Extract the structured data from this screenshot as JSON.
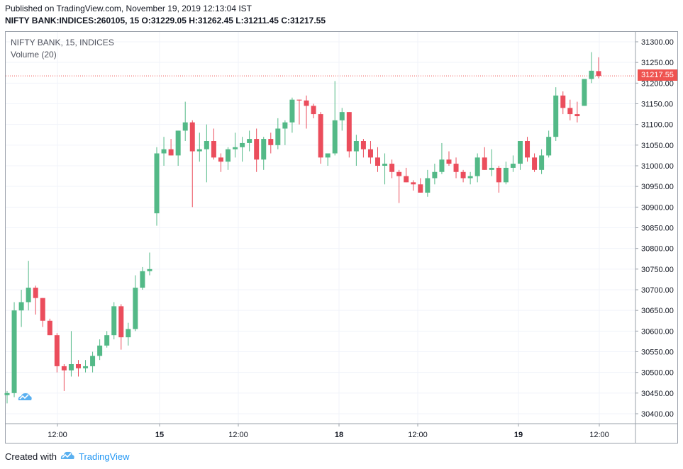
{
  "header": {
    "published": "Published on TradingView.com, November 19, 2019 12:13:04 IST",
    "symbol_line": "NIFTY BANK:INDICES:260105, 15 O:31229.05 H:31262.45 L:31211.45 C:31217.55"
  },
  "legend": {
    "series_title": "NIFTY BANK, 15, INDICES",
    "volume_label": "Volume (20)"
  },
  "footer": {
    "created_with": "Created with",
    "brand": "TradingView"
  },
  "colors": {
    "up": "#53b987",
    "down": "#eb4d5c",
    "grid": "#f0f3fa",
    "last_price_line": "#ef5350"
  },
  "chart_data": {
    "type": "candlestick",
    "timeframe": "15",
    "x_tick_labels": [
      "12:00",
      "15",
      "12:00",
      "18",
      "12:00",
      "19",
      "12:00"
    ],
    "y_ticks": [
      30400,
      30450,
      30500,
      30550,
      30600,
      30650,
      30700,
      30750,
      30800,
      30850,
      30900,
      30950,
      31000,
      31050,
      31100,
      31150,
      31200,
      31250,
      31300
    ],
    "y_tick_labels": [
      "30400.00",
      "30450.00",
      "30500.00",
      "30550.00",
      "30600.00",
      "30650.00",
      "30700.00",
      "30750.00",
      "30800.00",
      "30850.00",
      "30900.00",
      "30950.00",
      "31000.00",
      "31050.00",
      "31100.00",
      "31150.00",
      "31200.00",
      "31250.00",
      "31300.00"
    ],
    "ylim": [
      30375,
      31325
    ],
    "last_price": 31217.55,
    "last_price_label": "31217.55",
    "candles": [
      {
        "o": 30445,
        "h": 30455,
        "l": 30425,
        "c": 30450
      },
      {
        "o": 30450,
        "h": 30670,
        "l": 30440,
        "c": 30650
      },
      {
        "o": 30650,
        "h": 30700,
        "l": 30610,
        "c": 30670
      },
      {
        "o": 30670,
        "h": 30770,
        "l": 30650,
        "c": 30705
      },
      {
        "o": 30705,
        "h": 30710,
        "l": 30640,
        "c": 30680
      },
      {
        "o": 30680,
        "h": 30680,
        "l": 30610,
        "c": 30625
      },
      {
        "o": 30625,
        "h": 30630,
        "l": 30590,
        "c": 30590
      },
      {
        "o": 30590,
        "h": 30595,
        "l": 30500,
        "c": 30515
      },
      {
        "o": 30515,
        "h": 30520,
        "l": 30455,
        "c": 30505
      },
      {
        "o": 30505,
        "h": 30600,
        "l": 30490,
        "c": 30520
      },
      {
        "o": 30520,
        "h": 30530,
        "l": 30490,
        "c": 30510
      },
      {
        "o": 30510,
        "h": 30530,
        "l": 30500,
        "c": 30515
      },
      {
        "o": 30515,
        "h": 30550,
        "l": 30500,
        "c": 30540
      },
      {
        "o": 30540,
        "h": 30580,
        "l": 30530,
        "c": 30565
      },
      {
        "o": 30565,
        "h": 30600,
        "l": 30560,
        "c": 30590
      },
      {
        "o": 30590,
        "h": 30670,
        "l": 30580,
        "c": 30660
      },
      {
        "o": 30660,
        "h": 30665,
        "l": 30555,
        "c": 30585
      },
      {
        "o": 30585,
        "h": 30620,
        "l": 30565,
        "c": 30605
      },
      {
        "o": 30605,
        "h": 30735,
        "l": 30600,
        "c": 30705
      },
      {
        "o": 30705,
        "h": 30755,
        "l": 30700,
        "c": 30745
      },
      {
        "o": 30745,
        "h": 30790,
        "l": 30735,
        "c": 30750
      },
      {
        "o": 30885,
        "h": 31045,
        "l": 30855,
        "c": 31030
      },
      {
        "o": 31030,
        "h": 31070,
        "l": 31000,
        "c": 31040
      },
      {
        "o": 31040,
        "h": 31065,
        "l": 31030,
        "c": 31025
      },
      {
        "o": 31025,
        "h": 31085,
        "l": 31000,
        "c": 31085
      },
      {
        "o": 31085,
        "h": 31155,
        "l": 31060,
        "c": 31105
      },
      {
        "o": 31105,
        "h": 31110,
        "l": 30900,
        "c": 31035
      },
      {
        "o": 31035,
        "h": 31080,
        "l": 31010,
        "c": 31040
      },
      {
        "o": 31040,
        "h": 31100,
        "l": 30960,
        "c": 31060
      },
      {
        "o": 31060,
        "h": 31090,
        "l": 31015,
        "c": 31020
      },
      {
        "o": 31020,
        "h": 31030,
        "l": 30985,
        "c": 31010
      },
      {
        "o": 31010,
        "h": 31045,
        "l": 30990,
        "c": 31040
      },
      {
        "o": 31040,
        "h": 31080,
        "l": 31020,
        "c": 31045
      },
      {
        "o": 31045,
        "h": 31070,
        "l": 31010,
        "c": 31055
      },
      {
        "o": 31055,
        "h": 31085,
        "l": 31035,
        "c": 31065
      },
      {
        "o": 31065,
        "h": 31090,
        "l": 30985,
        "c": 31015
      },
      {
        "o": 31015,
        "h": 31070,
        "l": 30990,
        "c": 31065
      },
      {
        "o": 31065,
        "h": 31080,
        "l": 31030,
        "c": 31050
      },
      {
        "o": 31050,
        "h": 31115,
        "l": 31040,
        "c": 31090
      },
      {
        "o": 31090,
        "h": 31110,
        "l": 31050,
        "c": 31105
      },
      {
        "o": 31105,
        "h": 31165,
        "l": 31080,
        "c": 31160
      },
      {
        "o": 31160,
        "h": 31155,
        "l": 31100,
        "c": 31158
      },
      {
        "o": 31158,
        "h": 31170,
        "l": 31090,
        "c": 31145
      },
      {
        "o": 31145,
        "h": 31150,
        "l": 31115,
        "c": 31125
      },
      {
        "o": 31125,
        "h": 31130,
        "l": 31005,
        "c": 31020
      },
      {
        "o": 31020,
        "h": 31030,
        "l": 31000,
        "c": 31030
      },
      {
        "o": 31030,
        "h": 31205,
        "l": 31025,
        "c": 31110
      },
      {
        "o": 31110,
        "h": 31140,
        "l": 31085,
        "c": 31130
      },
      {
        "o": 31130,
        "h": 31130,
        "l": 31020,
        "c": 31035
      },
      {
        "o": 31035,
        "h": 31075,
        "l": 31000,
        "c": 31060
      },
      {
        "o": 31060,
        "h": 31065,
        "l": 31020,
        "c": 31040
      },
      {
        "o": 31040,
        "h": 31060,
        "l": 31005,
        "c": 31020
      },
      {
        "o": 31020,
        "h": 31045,
        "l": 30985,
        "c": 31000
      },
      {
        "o": 31000,
        "h": 31030,
        "l": 30955,
        "c": 31005
      },
      {
        "o": 31005,
        "h": 31015,
        "l": 30970,
        "c": 30985
      },
      {
        "o": 30985,
        "h": 30990,
        "l": 30910,
        "c": 30975
      },
      {
        "o": 30975,
        "h": 30995,
        "l": 30960,
        "c": 30960
      },
      {
        "o": 30960,
        "h": 30965,
        "l": 30940,
        "c": 30955
      },
      {
        "o": 30955,
        "h": 30970,
        "l": 30935,
        "c": 30935
      },
      {
        "o": 30935,
        "h": 30990,
        "l": 30925,
        "c": 30970
      },
      {
        "o": 30970,
        "h": 31005,
        "l": 30955,
        "c": 30985
      },
      {
        "o": 30985,
        "h": 31055,
        "l": 30980,
        "c": 31015
      },
      {
        "o": 31015,
        "h": 31035,
        "l": 31000,
        "c": 31005
      },
      {
        "o": 31005,
        "h": 31020,
        "l": 30970,
        "c": 30985
      },
      {
        "o": 30985,
        "h": 30990,
        "l": 30960,
        "c": 30970
      },
      {
        "o": 30970,
        "h": 30985,
        "l": 30955,
        "c": 30975
      },
      {
        "o": 30975,
        "h": 31030,
        "l": 30960,
        "c": 31020
      },
      {
        "o": 31020,
        "h": 31045,
        "l": 30990,
        "c": 30990
      },
      {
        "o": 30990,
        "h": 31040,
        "l": 30975,
        "c": 30995
      },
      {
        "o": 30995,
        "h": 31000,
        "l": 30935,
        "c": 30960
      },
      {
        "o": 30960,
        "h": 31010,
        "l": 30955,
        "c": 30995
      },
      {
        "o": 30995,
        "h": 31025,
        "l": 30985,
        "c": 31005
      },
      {
        "o": 31005,
        "h": 31060,
        "l": 30990,
        "c": 31060
      },
      {
        "o": 31060,
        "h": 31070,
        "l": 31010,
        "c": 31020
      },
      {
        "o": 31020,
        "h": 31030,
        "l": 30985,
        "c": 30990
      },
      {
        "o": 30990,
        "h": 31040,
        "l": 30980,
        "c": 31025
      },
      {
        "o": 31025,
        "h": 31085,
        "l": 31020,
        "c": 31070
      },
      {
        "o": 31070,
        "h": 31190,
        "l": 31060,
        "c": 31170
      },
      {
        "o": 31170,
        "h": 31180,
        "l": 31125,
        "c": 31140
      },
      {
        "o": 31140,
        "h": 31160,
        "l": 31110,
        "c": 31125
      },
      {
        "o": 31125,
        "h": 31155,
        "l": 31105,
        "c": 31120
      },
      {
        "o": 31145,
        "h": 31205,
        "l": 31145,
        "c": 31210
      },
      {
        "o": 31210,
        "h": 31275,
        "l": 31200,
        "c": 31230
      },
      {
        "o": 31229.05,
        "h": 31262.45,
        "l": 31211.45,
        "c": 31217.55
      }
    ]
  }
}
